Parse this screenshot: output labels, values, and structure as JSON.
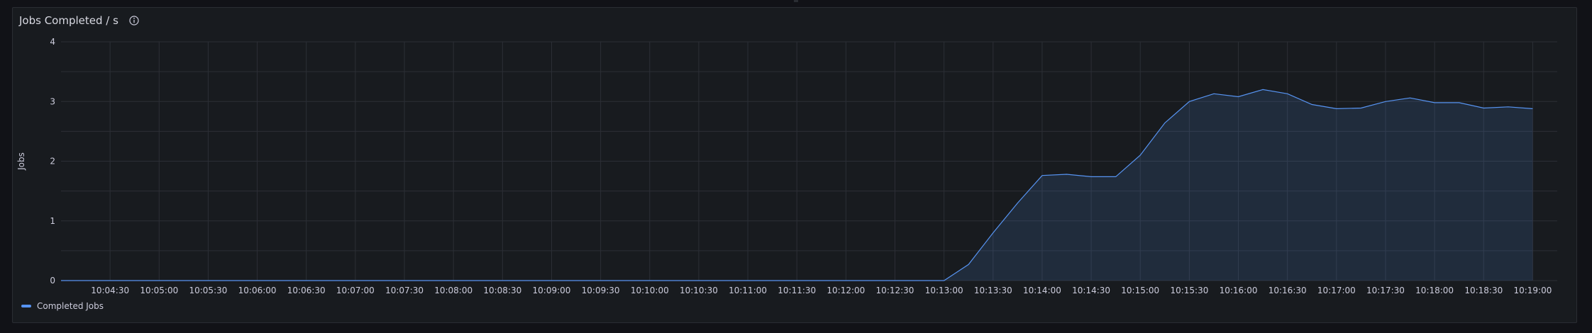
{
  "panel": {
    "title": "Jobs Completed / s",
    "info_icon": "info-circle-icon"
  },
  "chart_data": {
    "type": "area",
    "title": "Jobs Completed / s",
    "ylabel": "Jobs",
    "xlabel": "",
    "ylim": [
      0,
      4
    ],
    "yticks": [
      0,
      1,
      2,
      3,
      4
    ],
    "x_start": "10:04:00",
    "x_end": "10:19:15",
    "xticks": [
      "10:04:30",
      "10:05:00",
      "10:05:30",
      "10:06:00",
      "10:06:30",
      "10:07:00",
      "10:07:30",
      "10:08:00",
      "10:08:30",
      "10:09:00",
      "10:09:30",
      "10:10:00",
      "10:10:30",
      "10:11:00",
      "10:11:30",
      "10:12:00",
      "10:12:30",
      "10:13:00",
      "10:13:30",
      "10:14:00",
      "10:14:30",
      "10:15:00",
      "10:15:30",
      "10:16:00",
      "10:16:30",
      "10:17:00",
      "10:17:30",
      "10:18:00",
      "10:18:30",
      "10:19:00"
    ],
    "grid": true,
    "legend_position": "bottom-left",
    "series": [
      {
        "name": "Completed Jobs",
        "color": "#5794f2",
        "points": [
          [
            "10:04:00",
            0
          ],
          [
            "10:04:30",
            0
          ],
          [
            "10:05:00",
            0
          ],
          [
            "10:05:30",
            0
          ],
          [
            "10:06:00",
            0
          ],
          [
            "10:06:30",
            0
          ],
          [
            "10:07:00",
            0
          ],
          [
            "10:07:30",
            0
          ],
          [
            "10:08:00",
            0
          ],
          [
            "10:08:30",
            0
          ],
          [
            "10:09:00",
            0
          ],
          [
            "10:09:30",
            0
          ],
          [
            "10:10:00",
            0
          ],
          [
            "10:10:30",
            0
          ],
          [
            "10:11:00",
            0
          ],
          [
            "10:11:30",
            0
          ],
          [
            "10:12:00",
            0
          ],
          [
            "10:12:30",
            0
          ],
          [
            "10:13:00",
            0
          ],
          [
            "10:13:15",
            0.27
          ],
          [
            "10:13:30",
            0.8
          ],
          [
            "10:13:45",
            1.3
          ],
          [
            "10:14:00",
            1.76
          ],
          [
            "10:14:15",
            1.78
          ],
          [
            "10:14:30",
            1.74
          ],
          [
            "10:14:45",
            1.74
          ],
          [
            "10:15:00",
            2.1
          ],
          [
            "10:15:15",
            2.64
          ],
          [
            "10:15:30",
            3.0
          ],
          [
            "10:15:45",
            3.13
          ],
          [
            "10:16:00",
            3.08
          ],
          [
            "10:16:15",
            3.2
          ],
          [
            "10:16:30",
            3.13
          ],
          [
            "10:16:45",
            2.95
          ],
          [
            "10:17:00",
            2.88
          ],
          [
            "10:17:15",
            2.89
          ],
          [
            "10:17:30",
            3.0
          ],
          [
            "10:17:45",
            3.06
          ],
          [
            "10:18:00",
            2.98
          ],
          [
            "10:18:15",
            2.98
          ],
          [
            "10:18:30",
            2.89
          ],
          [
            "10:18:45",
            2.91
          ],
          [
            "10:19:00",
            2.88
          ]
        ]
      }
    ]
  },
  "colors": {
    "grid": "#2c2f36",
    "axis_text": "#ccccdc",
    "series_fill": "rgba(87,148,242,0.14)"
  }
}
